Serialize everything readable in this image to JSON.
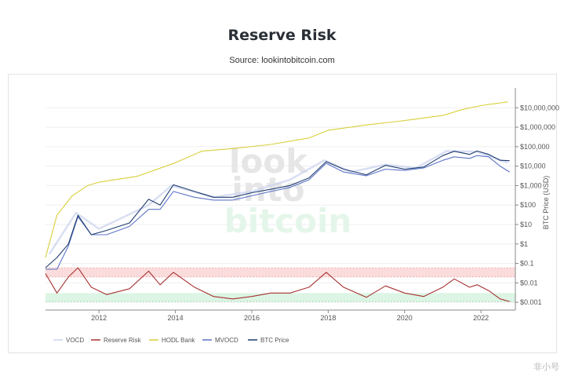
{
  "title": "Reserve Risk",
  "subtitle": "Source: lookintobitcoin.com",
  "watermark": [
    "look",
    "into",
    "bitcoin"
  ],
  "corner_mark": "非小号",
  "chart_data": {
    "type": "line",
    "title": "Reserve Risk",
    "x_ticks": [
      "2012",
      "2014",
      "2016",
      "2018",
      "2020",
      "2022"
    ],
    "xlim": [
      2010.6,
      2022.9
    ],
    "ylabel": "BTC Price (USD)",
    "y_scale": "log",
    "ylim": [
      0.0004,
      60000000
    ],
    "y_ticks": [
      {
        "label": "$10,000,000",
        "value": 10000000
      },
      {
        "label": "$1,000,000",
        "value": 1000000
      },
      {
        "label": "$100,000",
        "value": 100000
      },
      {
        "label": "$10,000",
        "value": 10000
      },
      {
        "label": "$1,000",
        "value": 1000
      },
      {
        "label": "$100",
        "value": 100
      },
      {
        "label": "$10",
        "value": 10
      },
      {
        "label": "$1",
        "value": 1
      },
      {
        "label": "$0.1",
        "value": 0.1
      },
      {
        "label": "$0.01",
        "value": 0.01
      },
      {
        "label": "$0.001",
        "value": 0.001
      }
    ],
    "bands": [
      {
        "name": "red-zone",
        "from": 0.02,
        "to": 0.06,
        "color": "#fbdcdc"
      },
      {
        "name": "green-zone",
        "from": 0.0011,
        "to": 0.003,
        "color": "#dcf5e4"
      }
    ],
    "legend_position": "bottom",
    "series": [
      {
        "name": "VOCD",
        "color": "#c9d2ee",
        "x": [
          2010.7,
          2011.4,
          2012.0,
          2013.3,
          2013.9,
          2015.0,
          2016.0,
          2017.0,
          2017.9,
          2018.6,
          2019.5,
          2020.3,
          2021.1,
          2021.9,
          2022.7
        ],
        "y": [
          0.3,
          40,
          6,
          100,
          1000,
          250,
          500,
          2000,
          20000,
          5000,
          12000,
          8000,
          60000,
          55000,
          15000
        ]
      },
      {
        "name": "Reserve Risk",
        "color": "#a83232",
        "x": [
          2010.6,
          2010.9,
          2011.2,
          2011.45,
          2011.8,
          2012.2,
          2012.8,
          2013.3,
          2013.6,
          2013.95,
          2014.5,
          2015.0,
          2015.5,
          2016.0,
          2016.5,
          2017.0,
          2017.5,
          2017.95,
          2018.4,
          2019.0,
          2019.5,
          2020.0,
          2020.5,
          2021.0,
          2021.3,
          2021.7,
          2021.9,
          2022.2,
          2022.5,
          2022.75
        ],
        "y": [
          0.03,
          0.003,
          0.02,
          0.06,
          0.006,
          0.0025,
          0.005,
          0.04,
          0.008,
          0.035,
          0.006,
          0.002,
          0.0015,
          0.002,
          0.003,
          0.003,
          0.006,
          0.035,
          0.006,
          0.0018,
          0.007,
          0.003,
          0.002,
          0.006,
          0.016,
          0.006,
          0.008,
          0.004,
          0.0015,
          0.0011
        ]
      },
      {
        "name": "HODL Bank",
        "color": "#d9cf3a",
        "x": [
          2010.6,
          2010.9,
          2011.3,
          2011.7,
          2012.0,
          2013.0,
          2014.0,
          2014.7,
          2015.5,
          2016.5,
          2017.5,
          2018.0,
          2019.0,
          2020.0,
          2021.0,
          2021.5,
          2022.0,
          2022.7
        ],
        "y": [
          0.2,
          30,
          300,
          1000,
          1500,
          3000,
          15000,
          60000,
          80000,
          130000,
          280000,
          700000,
          1300000,
          2200000,
          4000000,
          8000000,
          13000000,
          20000000
        ]
      },
      {
        "name": "MVOCD",
        "color": "#5c74c8",
        "x": [
          2010.6,
          2010.9,
          2011.2,
          2011.45,
          2011.8,
          2012.2,
          2012.8,
          2013.3,
          2013.6,
          2013.95,
          2014.5,
          2015.0,
          2015.5,
          2016.0,
          2016.5,
          2017.0,
          2017.5,
          2017.95,
          2018.4,
          2019.0,
          2019.5,
          2020.0,
          2020.5,
          2021.0,
          2021.3,
          2021.7,
          2021.9,
          2022.2,
          2022.5,
          2022.75
        ],
        "y": [
          0.05,
          0.05,
          0.8,
          25,
          3,
          3,
          8,
          60,
          60,
          500,
          250,
          180,
          180,
          300,
          500,
          800,
          2000,
          14000,
          5000,
          3200,
          7000,
          6000,
          8000,
          20000,
          30000,
          25000,
          35000,
          30000,
          10000,
          5000
        ]
      },
      {
        "name": "BTC Price",
        "color": "#1e3c6e",
        "x": [
          2010.6,
          2010.9,
          2011.2,
          2011.45,
          2011.8,
          2012.2,
          2012.8,
          2013.3,
          2013.6,
          2013.95,
          2014.5,
          2015.0,
          2015.5,
          2016.0,
          2016.5,
          2017.0,
          2017.5,
          2017.95,
          2018.4,
          2019.0,
          2019.5,
          2020.0,
          2020.5,
          2021.0,
          2021.3,
          2021.7,
          2021.9,
          2022.2,
          2022.5,
          2022.75
        ],
        "y": [
          0.06,
          0.2,
          1,
          30,
          3,
          5,
          12,
          200,
          100,
          1100,
          500,
          250,
          250,
          430,
          650,
          1000,
          2500,
          17000,
          7000,
          3600,
          11000,
          7000,
          9000,
          35000,
          58000,
          40000,
          60000,
          40000,
          20000,
          19000
        ]
      }
    ]
  }
}
